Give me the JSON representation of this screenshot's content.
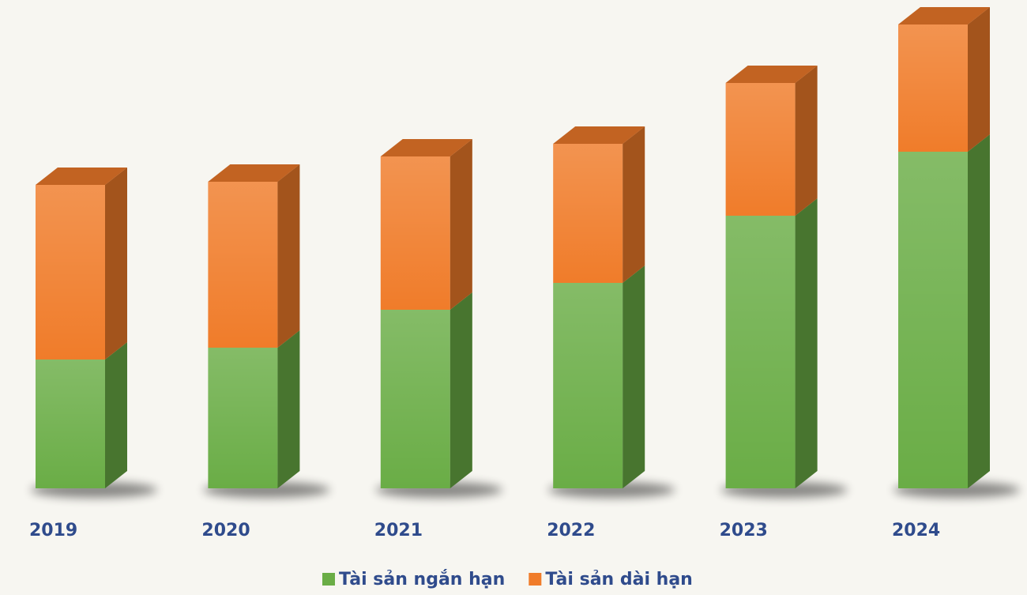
{
  "chart_data": {
    "type": "bar3d_stacked",
    "categories": [
      "2019",
      "2020",
      "2021",
      "2022",
      "2023",
      "2024"
    ],
    "series": [
      {
        "name": "Tài sản ngắn hạn",
        "color": "#6aad46",
        "values": [
          163,
          178,
          226,
          260,
          345,
          426
        ]
      },
      {
        "name": "Tài sản dài hạn",
        "color": "#f07c2a",
        "values": [
          221,
          210,
          194,
          176,
          168,
          161
        ]
      }
    ],
    "ylim": [
      0,
      600
    ],
    "legend": "bottom"
  }
}
